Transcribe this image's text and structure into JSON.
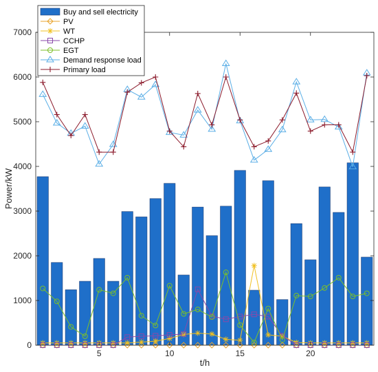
{
  "chart_data": {
    "type": "bar",
    "xlabel": "t/h",
    "ylabel": "Power/kW",
    "xlim": [
      0.5,
      24.5
    ],
    "ylim": [
      0,
      7000
    ],
    "xticks": [
      5,
      10,
      15,
      20
    ],
    "yticks": [
      0,
      1000,
      2000,
      3000,
      4000,
      5000,
      6000,
      7000
    ],
    "grid": false,
    "legend_position": "top-left",
    "x": [
      1,
      2,
      3,
      4,
      5,
      6,
      7,
      8,
      9,
      10,
      11,
      12,
      13,
      14,
      15,
      16,
      17,
      18,
      19,
      20,
      21,
      22,
      23,
      24
    ],
    "bar_series": {
      "name": "Buy and sell electricity",
      "color": "#1f6fc9",
      "values": [
        3770,
        1850,
        1240,
        1430,
        1940,
        1430,
        2990,
        2870,
        3280,
        3620,
        1570,
        3090,
        2450,
        3110,
        3910,
        1230,
        3680,
        1020,
        2720,
        1910,
        3540,
        2970,
        4080,
        1970
      ]
    },
    "series": [
      {
        "name": "PV",
        "color": "#e8a32c",
        "marker": "diamond",
        "values": [
          0,
          0,
          0,
          0,
          0,
          0,
          0,
          0,
          0,
          0,
          0,
          0,
          0,
          0,
          0,
          0,
          0,
          0,
          0,
          0,
          0,
          0,
          0,
          0
        ]
      },
      {
        "name": "WT",
        "color": "#f0c020",
        "marker": "asterisk",
        "values": [
          50,
          50,
          50,
          50,
          50,
          50,
          50,
          70,
          90,
          150,
          240,
          270,
          250,
          130,
          110,
          1780,
          230,
          200,
          60,
          50,
          50,
          50,
          50,
          50
        ]
      },
      {
        "name": "CCHP",
        "color": "#8a4aa8",
        "marker": "square",
        "values": [
          0,
          0,
          0,
          0,
          0,
          0,
          180,
          200,
          210,
          230,
          250,
          1250,
          650,
          580,
          640,
          690,
          640,
          210,
          0,
          0,
          0,
          0,
          0,
          0
        ]
      },
      {
        "name": "EGT",
        "color": "#7cbf2a",
        "marker": "circle",
        "values": [
          1270,
          980,
          410,
          200,
          1240,
          1160,
          1510,
          660,
          440,
          1330,
          700,
          800,
          630,
          1630,
          450,
          60,
          820,
          120,
          1110,
          1090,
          1280,
          1510,
          1090,
          1160
        ]
      },
      {
        "name": "Demand response load",
        "color": "#5aaee6",
        "marker": "triangle",
        "values": [
          5610,
          4970,
          4740,
          4900,
          4050,
          4490,
          5720,
          5550,
          5830,
          4760,
          4700,
          5260,
          4830,
          6300,
          5020,
          4140,
          4380,
          4820,
          5890,
          5040,
          5050,
          4880,
          3990,
          6090
        ]
      },
      {
        "name": "Primary load",
        "color": "#8b1a2b",
        "marker": "plus",
        "values": [
          5880,
          5160,
          4690,
          5160,
          4320,
          4320,
          5660,
          5870,
          6000,
          4790,
          4440,
          5630,
          4930,
          6000,
          5040,
          4440,
          4570,
          5040,
          5640,
          4790,
          4930,
          4930,
          4320,
          6030
        ]
      }
    ]
  }
}
